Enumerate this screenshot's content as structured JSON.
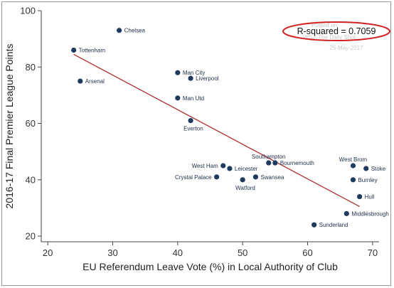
{
  "chart_data": {
    "type": "scatter",
    "xlabel": "EU Referendum Leave Vote (%) in Local Authority of Club",
    "ylabel": "2016-17 Final Premier League Points",
    "xlim": [
      19,
      71
    ],
    "ylim": [
      18,
      100
    ],
    "xticks": [
      20,
      30,
      40,
      50,
      60,
      70
    ],
    "yticks": [
      20,
      40,
      60,
      80,
      100
    ],
    "grid": false,
    "annotation": "R-squared = 0.7059",
    "watermark": [
      "Posted on",
      "WSJ: The Daily Shot",
      "25-May-2017"
    ],
    "trendline": {
      "x": [
        24,
        68
      ],
      "y": [
        84.5,
        30.5
      ],
      "color": "#b03030"
    },
    "point_color": "#1f3a5f",
    "points": [
      {
        "label": "Chelsea",
        "x": 31,
        "y": 93,
        "anchor": "right"
      },
      {
        "label": "Tottenham",
        "x": 24,
        "y": 86,
        "anchor": "right"
      },
      {
        "label": "Arsenal",
        "x": 25,
        "y": 75,
        "anchor": "right"
      },
      {
        "label": "Man City",
        "x": 40,
        "y": 78,
        "anchor": "right"
      },
      {
        "label": "Liverpool",
        "x": 42,
        "y": 76,
        "anchor": "right"
      },
      {
        "label": "Man Utd",
        "x": 40,
        "y": 69,
        "anchor": "right"
      },
      {
        "label": "Everton",
        "x": 42,
        "y": 61,
        "anchor": "below"
      },
      {
        "label": "West Ham",
        "x": 47,
        "y": 45,
        "anchor": "left"
      },
      {
        "label": "Leicester",
        "x": 48,
        "y": 44,
        "anchor": "right"
      },
      {
        "label": "Crystal Palace",
        "x": 46,
        "y": 41,
        "anchor": "left"
      },
      {
        "label": "Watford",
        "x": 50,
        "y": 40,
        "anchor": "below"
      },
      {
        "label": "Swansea",
        "x": 52,
        "y": 41,
        "anchor": "right"
      },
      {
        "label": "Southampton",
        "x": 54,
        "y": 46,
        "anchor": "above"
      },
      {
        "label": "Bournemouth",
        "x": 55,
        "y": 46,
        "anchor": "right"
      },
      {
        "label": "West Brom",
        "x": 67,
        "y": 45,
        "anchor": "above"
      },
      {
        "label": "Stoke",
        "x": 69,
        "y": 44,
        "anchor": "right"
      },
      {
        "label": "Burnley",
        "x": 67,
        "y": 40,
        "anchor": "right"
      },
      {
        "label": "Hull",
        "x": 68,
        "y": 34,
        "anchor": "right"
      },
      {
        "label": "Middlesbrough",
        "x": 66,
        "y": 28,
        "anchor": "right"
      },
      {
        "label": "Sunderland",
        "x": 61,
        "y": 24,
        "anchor": "right"
      }
    ]
  }
}
